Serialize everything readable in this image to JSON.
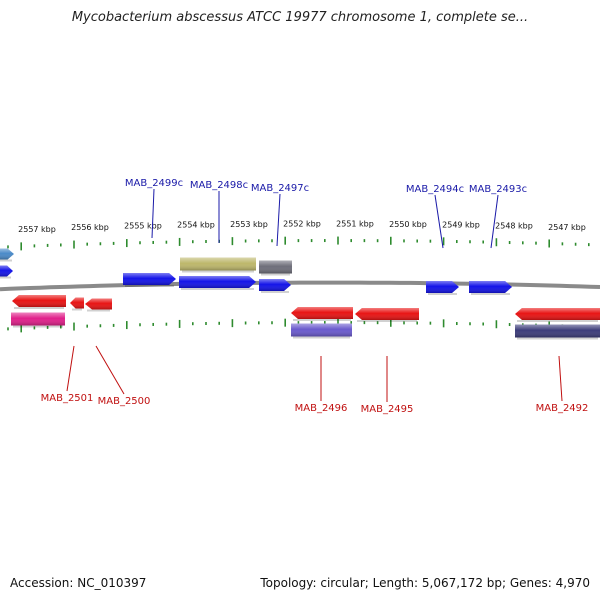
{
  "title": "Mycobacterium abscessus ATCC 19977 chromosome 1, complete se...",
  "footer": {
    "accession": "Accession: NC_010397",
    "summary": "Topology: circular; Length: 5,067,172 bp; Genes: 4,970"
  },
  "colors": {
    "backbone": "#8a8a8a",
    "tick": "#2e8b2e",
    "top_label": "#1a1aa8",
    "bottom_label": "#c01010"
  },
  "scale_labels": [
    "2557 kbp",
    "2556 kbp",
    "2555 kbp",
    "2554 kbp",
    "2553 kbp",
    "2552 kbp",
    "2551 kbp",
    "2550 kbp",
    "2549 kbp",
    "2548 kbp",
    "2547 kbp"
  ],
  "genes_top": [
    {
      "label": "",
      "color": "#4a8ac8",
      "strand": "+"
    },
    {
      "label": "",
      "color": "#1414e8",
      "strand": "+"
    },
    {
      "label": "",
      "color": "#1414e8",
      "strand": "+"
    },
    {
      "label": "MAB_2499c",
      "color": "#1414e8",
      "strand": "+"
    },
    {
      "label": "MAB_2498c",
      "color": "#1414e8",
      "strand": "+"
    },
    {
      "label": "MAB_2497c",
      "color": "#1414e8",
      "strand": "+"
    },
    {
      "label": "",
      "color": "#bdb76b",
      "strand": "none"
    },
    {
      "label": "",
      "color": "#6e6e7a",
      "strand": "none"
    },
    {
      "label": "MAB_2494c",
      "color": "#1414e8",
      "strand": "+"
    },
    {
      "label": "MAB_2493c",
      "color": "#1414e8",
      "strand": "+"
    }
  ],
  "genes_bottom": [
    {
      "label": "",
      "color": "#e81414",
      "strand": "-"
    },
    {
      "label": "MAB_2501",
      "color": "#e81414",
      "strand": "-"
    },
    {
      "label": "MAB_2500",
      "color": "#e81414",
      "strand": "-"
    },
    {
      "label": "MAB_2496",
      "color": "#e81414",
      "strand": "-"
    },
    {
      "label": "MAB_2495",
      "color": "#e81414",
      "strand": "-"
    },
    {
      "label": "MAB_2492",
      "color": "#e81414",
      "strand": "-"
    },
    {
      "label": "",
      "color": "#e0208a",
      "strand": "none"
    },
    {
      "label": "",
      "color": "#6a5acd",
      "strand": "none"
    },
    {
      "label": "",
      "color": "#3c3c7a",
      "strand": "none"
    }
  ]
}
